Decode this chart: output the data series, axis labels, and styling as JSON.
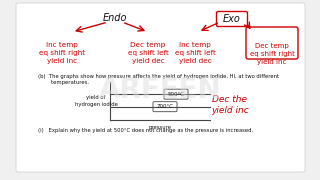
{
  "bg_color": "#f0f0f0",
  "page_bg": "#ffffff",
  "endo_label": "Endo",
  "exo_label": "Exo",
  "left_box1_text": "Inc temp\neq shift right\nyield inc",
  "left_box2_text": "Dec temp\neq shift left\nyield dec",
  "right_box1_text": "Inc temp\neq shift left\nyield dec",
  "right_box2_text": "Dec temp\neq shift right\nyield inc",
  "graph_question": "(b)  The graphs show how pressure affects the yield of hydrogen iodide, HI, at two different\n        temperatures.",
  "graph_ylabel": "yield of\nhydrogen iodide",
  "graph_xlabel": "pressure",
  "line1_label": "500°C",
  "line2_label": "700°C",
  "annot_text": "Dec the\nyield inc",
  "bottom_question": "(i)   Explain why the yield at 500°C does not change as the pressure is increased.",
  "red_color": "#cc0000",
  "arrow_color": "#cc0000",
  "box_outline_color": "#cc0000",
  "text_color": "#111111",
  "graph_line_color": "#333333"
}
